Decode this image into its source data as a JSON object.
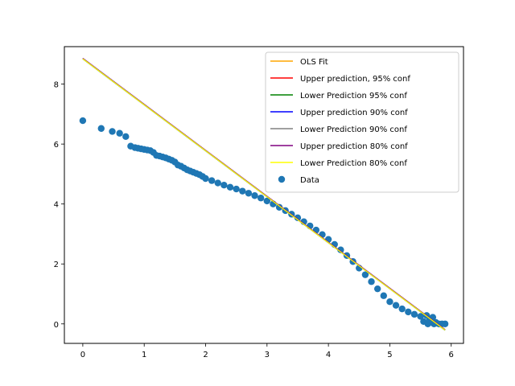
{
  "chart_data": {
    "type": "scatter",
    "title": "",
    "xlabel": "",
    "ylabel": "",
    "xlim": [
      -0.3,
      6.2
    ],
    "ylim": [
      -0.65,
      9.25
    ],
    "x_ticks": [
      0,
      1,
      2,
      3,
      4,
      5,
      6
    ],
    "y_ticks": [
      0,
      2,
      4,
      6,
      8
    ],
    "grid": false,
    "legend_position": "top-right",
    "fit_lines": [
      {
        "name": "OLS Fit",
        "color": "#ffa500",
        "x": [
          0,
          5.9
        ],
        "y": [
          8.85,
          -0.2
        ]
      },
      {
        "name": "Upper prediction, 95% conf",
        "color": "#ff0000",
        "x": [
          0,
          5.9
        ],
        "y": [
          8.86,
          -0.19
        ]
      },
      {
        "name": "Lower Prediction 95% conf",
        "color": "#008000",
        "x": [
          0,
          5.9
        ],
        "y": [
          8.84,
          -0.21
        ]
      },
      {
        "name": "Upper prediction 90% conf",
        "color": "#0000ff",
        "x": [
          0,
          5.9
        ],
        "y": [
          8.858,
          -0.192
        ]
      },
      {
        "name": "Lower Prediction 90% conf",
        "color": "#808080",
        "x": [
          0,
          5.9
        ],
        "y": [
          8.842,
          -0.208
        ]
      },
      {
        "name": "Upper prediction 80% conf",
        "color": "#800080",
        "x": [
          0,
          5.9
        ],
        "y": [
          8.855,
          -0.195
        ]
      },
      {
        "name": "Lower Prediction 80% conf",
        "color": "#ffff00",
        "x": [
          0,
          5.9
        ],
        "y": [
          8.845,
          -0.205
        ]
      }
    ],
    "scatter": {
      "name": "Data",
      "color": "#1f77b4",
      "points": [
        [
          0.0,
          6.78
        ],
        [
          0.3,
          6.52
        ],
        [
          0.48,
          6.42
        ],
        [
          0.6,
          6.36
        ],
        [
          0.7,
          6.25
        ],
        [
          0.78,
          5.93
        ],
        [
          0.85,
          5.88
        ],
        [
          0.9,
          5.86
        ],
        [
          0.95,
          5.84
        ],
        [
          1.0,
          5.82
        ],
        [
          1.05,
          5.8
        ],
        [
          1.1,
          5.78
        ],
        [
          1.15,
          5.72
        ],
        [
          1.2,
          5.62
        ],
        [
          1.25,
          5.6
        ],
        [
          1.3,
          5.57
        ],
        [
          1.35,
          5.54
        ],
        [
          1.4,
          5.5
        ],
        [
          1.45,
          5.46
        ],
        [
          1.5,
          5.4
        ],
        [
          1.55,
          5.3
        ],
        [
          1.6,
          5.26
        ],
        [
          1.65,
          5.2
        ],
        [
          1.7,
          5.14
        ],
        [
          1.75,
          5.1
        ],
        [
          1.8,
          5.06
        ],
        [
          1.85,
          5.02
        ],
        [
          1.9,
          4.98
        ],
        [
          1.95,
          4.92
        ],
        [
          2.0,
          4.85
        ],
        [
          2.1,
          4.78
        ],
        [
          2.2,
          4.7
        ],
        [
          2.3,
          4.63
        ],
        [
          2.4,
          4.56
        ],
        [
          2.5,
          4.5
        ],
        [
          2.6,
          4.43
        ],
        [
          2.7,
          4.36
        ],
        [
          2.8,
          4.28
        ],
        [
          2.9,
          4.2
        ],
        [
          3.0,
          4.1
        ],
        [
          3.1,
          4.0
        ],
        [
          3.2,
          3.89
        ],
        [
          3.3,
          3.78
        ],
        [
          3.4,
          3.66
        ],
        [
          3.5,
          3.54
        ],
        [
          3.6,
          3.41
        ],
        [
          3.7,
          3.27
        ],
        [
          3.8,
          3.13
        ],
        [
          3.9,
          2.98
        ],
        [
          4.0,
          2.82
        ],
        [
          4.1,
          2.65
        ],
        [
          4.2,
          2.47
        ],
        [
          4.3,
          2.28
        ],
        [
          4.4,
          2.08
        ],
        [
          4.5,
          1.86
        ],
        [
          4.6,
          1.64
        ],
        [
          4.7,
          1.41
        ],
        [
          4.8,
          1.17
        ],
        [
          4.9,
          0.94
        ],
        [
          5.0,
          0.74
        ],
        [
          5.1,
          0.62
        ],
        [
          5.2,
          0.5
        ],
        [
          5.3,
          0.4
        ],
        [
          5.4,
          0.32
        ],
        [
          5.5,
          0.25
        ],
        [
          5.55,
          0.08
        ],
        [
          5.6,
          0.28
        ],
        [
          5.62,
          0.0
        ],
        [
          5.65,
          0.15
        ],
        [
          5.7,
          0.22
        ],
        [
          5.72,
          0.0
        ],
        [
          5.75,
          0.05
        ],
        [
          5.8,
          0.0
        ],
        [
          5.85,
          0.0
        ],
        [
          5.9,
          0.0
        ]
      ]
    }
  }
}
